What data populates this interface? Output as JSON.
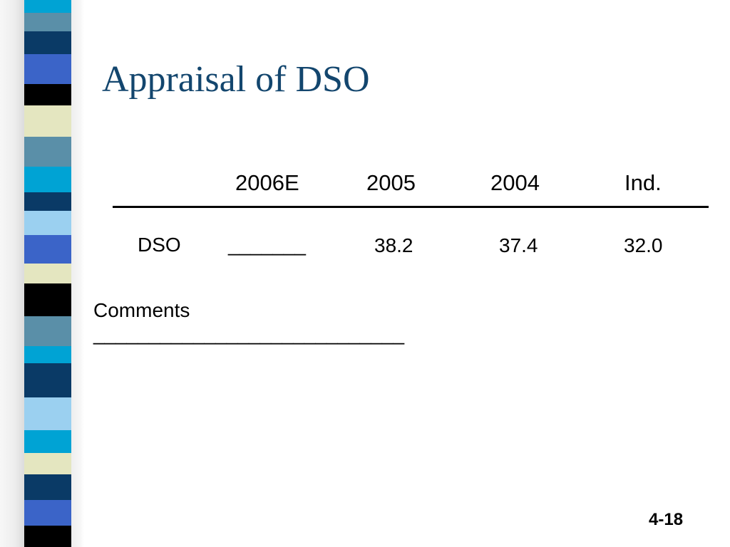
{
  "slide": {
    "title": "Appraisal of DSO",
    "accent_color": "#13466e",
    "page_number": "4-18"
  },
  "table": {
    "headers": [
      "2006E",
      "2005",
      "2004",
      "Ind."
    ],
    "row": {
      "label": "DSO",
      "blank": "_______",
      "values": [
        "38.2",
        "37.4",
        "32.0"
      ]
    }
  },
  "comments": {
    "label": "Comments",
    "blank_line": "____________________________"
  },
  "decoration": {
    "stripe_colors": [
      "#0a3a66",
      "#5a8fa8",
      "#00a3d4",
      "#3b64c8",
      "#000000",
      "#e4e6c0",
      "#9bd0f0"
    ]
  }
}
